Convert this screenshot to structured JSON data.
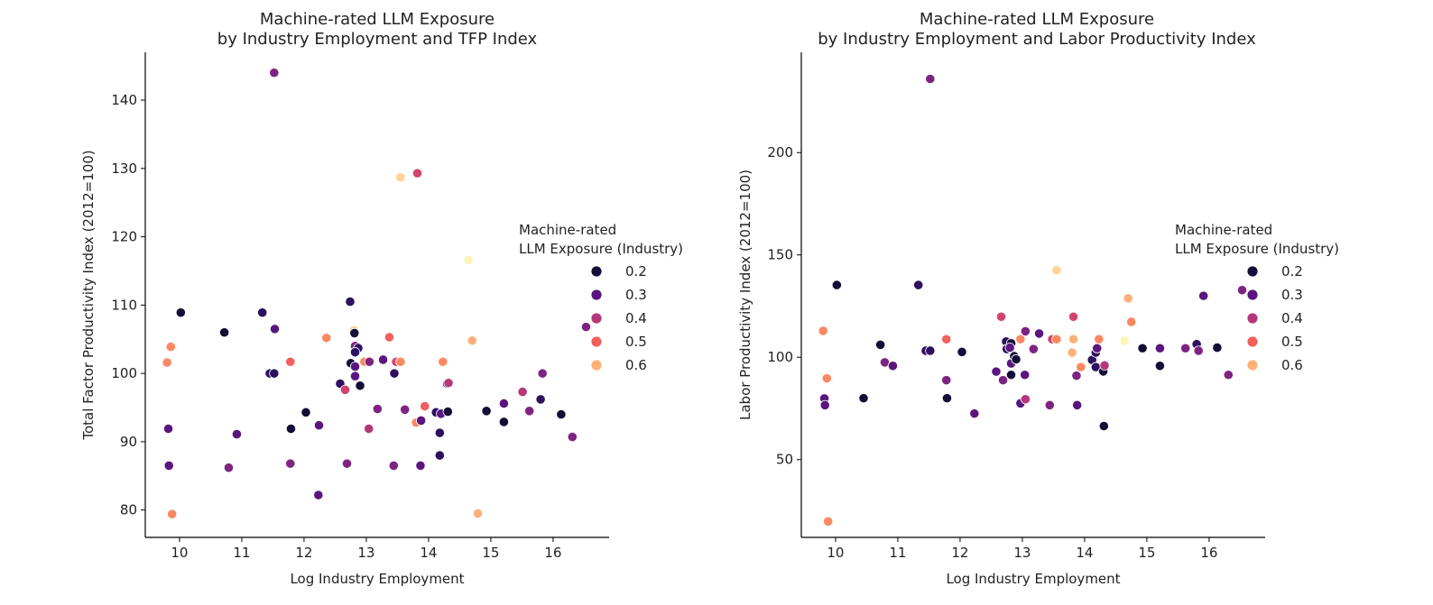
{
  "palette": {
    "0.2": "#140e36",
    "0.25": "#2d1160",
    "0.3": "#5a167e",
    "0.35": "#7d2482",
    "0.4": "#b5367a",
    "0.45": "#d3436e",
    "0.5": "#f1605d",
    "0.55": "#fb8861",
    "0.6": "#feb078",
    "0.65": "#fed395",
    "0.7": "#fcf5b8"
  },
  "chart_data": [
    {
      "type": "scatter",
      "title_line1": "Machine-rated LLM Exposure",
      "title_line2": "by Industry Employment and TFP Index",
      "xlabel": "Log Industry Employment",
      "ylabel": "Total Factor Productivity Index (2012=100)",
      "xlim": [
        9.45,
        16.9
      ],
      "ylim": [
        76,
        147
      ],
      "xticks": [
        10,
        11,
        12,
        13,
        14,
        15,
        16
      ],
      "yticks": [
        80,
        90,
        100,
        110,
        120,
        130,
        140
      ],
      "grid": false,
      "legend": {
        "title_line1": "Machine-rated",
        "title_line2": "LLM Exposure (Industry)",
        "position": "right",
        "entries": [
          {
            "label": "0.2",
            "value": 0.2
          },
          {
            "label": "0.3",
            "value": 0.3
          },
          {
            "label": "0.4",
            "value": 0.4
          },
          {
            "label": "0.5",
            "value": 0.5
          },
          {
            "label": "0.6",
            "value": 0.6
          }
        ]
      },
      "points": [
        {
          "x": 11.52,
          "y": 144.0,
          "c": 0.35
        },
        {
          "x": 13.55,
          "y": 128.7,
          "c": 0.65
        },
        {
          "x": 13.82,
          "y": 129.3,
          "c": 0.45
        },
        {
          "x": 14.64,
          "y": 116.6,
          "c": 0.7
        },
        {
          "x": 10.02,
          "y": 108.9,
          "c": 0.2
        },
        {
          "x": 10.72,
          "y": 106.0,
          "c": 0.2
        },
        {
          "x": 11.33,
          "y": 108.9,
          "c": 0.25
        },
        {
          "x": 11.53,
          "y": 106.5,
          "c": 0.3
        },
        {
          "x": 12.74,
          "y": 110.5,
          "c": 0.25
        },
        {
          "x": 12.36,
          "y": 105.2,
          "c": 0.55
        },
        {
          "x": 12.8,
          "y": 106.3,
          "c": 0.65
        },
        {
          "x": 12.81,
          "y": 105.9,
          "c": 0.2
        },
        {
          "x": 9.86,
          "y": 103.9,
          "c": 0.55
        },
        {
          "x": 9.8,
          "y": 101.6,
          "c": 0.55
        },
        {
          "x": 11.45,
          "y": 100.0,
          "c": 0.25
        },
        {
          "x": 11.52,
          "y": 100.0,
          "c": 0.25
        },
        {
          "x": 11.78,
          "y": 101.7,
          "c": 0.5
        },
        {
          "x": 12.58,
          "y": 98.5,
          "c": 0.25
        },
        {
          "x": 12.66,
          "y": 97.6,
          "c": 0.45
        },
        {
          "x": 12.82,
          "y": 104.0,
          "c": 0.35
        },
        {
          "x": 12.87,
          "y": 103.7,
          "c": 0.25
        },
        {
          "x": 12.82,
          "y": 103.1,
          "c": 0.25
        },
        {
          "x": 12.75,
          "y": 101.5,
          "c": 0.2
        },
        {
          "x": 12.82,
          "y": 101.0,
          "c": 0.3
        },
        {
          "x": 12.82,
          "y": 99.6,
          "c": 0.3
        },
        {
          "x": 12.9,
          "y": 98.2,
          "c": 0.2
        },
        {
          "x": 12.97,
          "y": 101.7,
          "c": 0.55
        },
        {
          "x": 13.05,
          "y": 101.7,
          "c": 0.35
        },
        {
          "x": 13.27,
          "y": 102.0,
          "c": 0.3
        },
        {
          "x": 13.37,
          "y": 105.3,
          "c": 0.5
        },
        {
          "x": 13.45,
          "y": 100.0,
          "c": 0.25
        },
        {
          "x": 13.48,
          "y": 101.7,
          "c": 0.45
        },
        {
          "x": 13.55,
          "y": 101.7,
          "c": 0.55
        },
        {
          "x": 14.23,
          "y": 101.7,
          "c": 0.55
        },
        {
          "x": 14.3,
          "y": 98.5,
          "c": 0.2
        },
        {
          "x": 14.32,
          "y": 98.6,
          "c": 0.4
        },
        {
          "x": 14.7,
          "y": 104.8,
          "c": 0.6
        },
        {
          "x": 15.51,
          "y": 97.3,
          "c": 0.4
        },
        {
          "x": 15.83,
          "y": 100.0,
          "c": 0.35
        },
        {
          "x": 16.53,
          "y": 106.8,
          "c": 0.35
        },
        {
          "x": 15.8,
          "y": 96.2,
          "c": 0.25
        },
        {
          "x": 15.62,
          "y": 94.5,
          "c": 0.35
        },
        {
          "x": 15.21,
          "y": 95.6,
          "c": 0.3
        },
        {
          "x": 14.93,
          "y": 94.5,
          "c": 0.2
        },
        {
          "x": 15.21,
          "y": 92.9,
          "c": 0.2
        },
        {
          "x": 16.13,
          "y": 94.0,
          "c": 0.2
        },
        {
          "x": 16.31,
          "y": 90.7,
          "c": 0.35
        },
        {
          "x": 12.03,
          "y": 94.3,
          "c": 0.2
        },
        {
          "x": 11.79,
          "y": 91.9,
          "c": 0.2
        },
        {
          "x": 12.24,
          "y": 92.4,
          "c": 0.3
        },
        {
          "x": 13.18,
          "y": 94.8,
          "c": 0.35
        },
        {
          "x": 13.04,
          "y": 91.9,
          "c": 0.4
        },
        {
          "x": 13.62,
          "y": 94.7,
          "c": 0.35
        },
        {
          "x": 13.8,
          "y": 92.8,
          "c": 0.55
        },
        {
          "x": 13.88,
          "y": 93.1,
          "c": 0.3
        },
        {
          "x": 13.94,
          "y": 95.2,
          "c": 0.5
        },
        {
          "x": 14.12,
          "y": 94.3,
          "c": 0.25
        },
        {
          "x": 14.2,
          "y": 94.1,
          "c": 0.3
        },
        {
          "x": 14.31,
          "y": 94.4,
          "c": 0.2
        },
        {
          "x": 14.18,
          "y": 91.3,
          "c": 0.25
        },
        {
          "x": 14.18,
          "y": 88.0,
          "c": 0.25
        },
        {
          "x": 9.82,
          "y": 91.9,
          "c": 0.3
        },
        {
          "x": 10.92,
          "y": 91.1,
          "c": 0.3
        },
        {
          "x": 9.83,
          "y": 86.5,
          "c": 0.3
        },
        {
          "x": 10.79,
          "y": 86.2,
          "c": 0.35
        },
        {
          "x": 11.78,
          "y": 86.8,
          "c": 0.35
        },
        {
          "x": 12.69,
          "y": 86.8,
          "c": 0.35
        },
        {
          "x": 13.44,
          "y": 86.5,
          "c": 0.35
        },
        {
          "x": 13.87,
          "y": 86.5,
          "c": 0.3
        },
        {
          "x": 12.23,
          "y": 82.2,
          "c": 0.3
        },
        {
          "x": 9.88,
          "y": 79.4,
          "c": 0.55
        },
        {
          "x": 14.79,
          "y": 79.5,
          "c": 0.6
        }
      ]
    },
    {
      "type": "scatter",
      "title_line1": "Machine-rated LLM Exposure",
      "title_line2": "by Industry Employment and Labor Productivity Index",
      "xlabel": "Log Industry Employment",
      "ylabel": "Labor Productivity Index (2012=100)",
      "xlim": [
        9.45,
        16.9
      ],
      "ylim": [
        12,
        249
      ],
      "xticks": [
        10,
        11,
        12,
        13,
        14,
        15,
        16
      ],
      "yticks": [
        50,
        100,
        150,
        200
      ],
      "grid": false,
      "legend": {
        "title_line1": "Machine-rated",
        "title_line2": "LLM Exposure (Industry)",
        "position": "right",
        "entries": [
          {
            "label": "0.2",
            "value": 0.2
          },
          {
            "label": "0.3",
            "value": 0.3
          },
          {
            "label": "0.4",
            "value": 0.4
          },
          {
            "label": "0.5",
            "value": 0.5
          },
          {
            "label": "0.6",
            "value": 0.6
          }
        ]
      },
      "points": [
        {
          "x": 11.52,
          "y": 236.0,
          "c": 0.35
        },
        {
          "x": 13.55,
          "y": 142.5,
          "c": 0.65
        },
        {
          "x": 14.64,
          "y": 108.0,
          "c": 0.7
        },
        {
          "x": 14.7,
          "y": 128.8,
          "c": 0.6
        },
        {
          "x": 14.75,
          "y": 117.3,
          "c": 0.55
        },
        {
          "x": 10.02,
          "y": 135.3,
          "c": 0.2
        },
        {
          "x": 11.33,
          "y": 135.3,
          "c": 0.25
        },
        {
          "x": 9.8,
          "y": 112.9,
          "c": 0.55
        },
        {
          "x": 9.86,
          "y": 89.7,
          "c": 0.55
        },
        {
          "x": 9.82,
          "y": 79.9,
          "c": 0.3
        },
        {
          "x": 9.83,
          "y": 76.6,
          "c": 0.3
        },
        {
          "x": 9.88,
          "y": 19.8,
          "c": 0.55
        },
        {
          "x": 10.72,
          "y": 106.1,
          "c": 0.2
        },
        {
          "x": 10.79,
          "y": 97.5,
          "c": 0.35
        },
        {
          "x": 10.92,
          "y": 95.8,
          "c": 0.3
        },
        {
          "x": 10.45,
          "y": 80.0,
          "c": 0.2
        },
        {
          "x": 11.45,
          "y": 103.2,
          "c": 0.25
        },
        {
          "x": 11.52,
          "y": 103.2,
          "c": 0.25
        },
        {
          "x": 11.78,
          "y": 108.8,
          "c": 0.5
        },
        {
          "x": 11.78,
          "y": 88.8,
          "c": 0.35
        },
        {
          "x": 11.79,
          "y": 80.0,
          "c": 0.2
        },
        {
          "x": 12.03,
          "y": 102.6,
          "c": 0.2
        },
        {
          "x": 12.23,
          "y": 72.5,
          "c": 0.3
        },
        {
          "x": 12.58,
          "y": 93.0,
          "c": 0.3
        },
        {
          "x": 12.66,
          "y": 119.8,
          "c": 0.45
        },
        {
          "x": 12.69,
          "y": 88.8,
          "c": 0.35
        },
        {
          "x": 12.74,
          "y": 107.7,
          "c": 0.25
        },
        {
          "x": 12.75,
          "y": 104.0,
          "c": 0.25
        },
        {
          "x": 12.82,
          "y": 106.8,
          "c": 0.2
        },
        {
          "x": 12.8,
          "y": 104.7,
          "c": 0.3
        },
        {
          "x": 12.82,
          "y": 97.0,
          "c": 0.3
        },
        {
          "x": 12.82,
          "y": 91.4,
          "c": 0.2
        },
        {
          "x": 12.87,
          "y": 100.5,
          "c": 0.2
        },
        {
          "x": 12.9,
          "y": 99.0,
          "c": 0.2
        },
        {
          "x": 12.97,
          "y": 108.8,
          "c": 0.55
        },
        {
          "x": 12.97,
          "y": 77.5,
          "c": 0.3
        },
        {
          "x": 13.04,
          "y": 91.4,
          "c": 0.3
        },
        {
          "x": 13.05,
          "y": 112.7,
          "c": 0.35
        },
        {
          "x": 13.05,
          "y": 79.5,
          "c": 0.4
        },
        {
          "x": 13.18,
          "y": 104.0,
          "c": 0.35
        },
        {
          "x": 13.27,
          "y": 111.6,
          "c": 0.3
        },
        {
          "x": 13.44,
          "y": 76.6,
          "c": 0.35
        },
        {
          "x": 13.48,
          "y": 108.8,
          "c": 0.45
        },
        {
          "x": 13.55,
          "y": 108.8,
          "c": 0.55
        },
        {
          "x": 13.8,
          "y": 102.3,
          "c": 0.6
        },
        {
          "x": 13.82,
          "y": 108.8,
          "c": 0.6
        },
        {
          "x": 13.82,
          "y": 119.8,
          "c": 0.45
        },
        {
          "x": 13.87,
          "y": 91.0,
          "c": 0.35
        },
        {
          "x": 13.88,
          "y": 76.6,
          "c": 0.3
        },
        {
          "x": 13.94,
          "y": 95.2,
          "c": 0.55
        },
        {
          "x": 14.12,
          "y": 98.7,
          "c": 0.25
        },
        {
          "x": 14.18,
          "y": 102.3,
          "c": 0.25
        },
        {
          "x": 14.2,
          "y": 104.4,
          "c": 0.3
        },
        {
          "x": 14.18,
          "y": 95.2,
          "c": 0.25
        },
        {
          "x": 14.23,
          "y": 108.8,
          "c": 0.55
        },
        {
          "x": 14.3,
          "y": 93.1,
          "c": 0.2
        },
        {
          "x": 14.32,
          "y": 96.0,
          "c": 0.4
        },
        {
          "x": 14.31,
          "y": 66.4,
          "c": 0.2
        },
        {
          "x": 14.93,
          "y": 104.4,
          "c": 0.2
        },
        {
          "x": 15.21,
          "y": 104.4,
          "c": 0.3
        },
        {
          "x": 15.21,
          "y": 95.8,
          "c": 0.2
        },
        {
          "x": 15.62,
          "y": 104.4,
          "c": 0.35
        },
        {
          "x": 15.8,
          "y": 106.4,
          "c": 0.25
        },
        {
          "x": 15.83,
          "y": 103.2,
          "c": 0.35
        },
        {
          "x": 15.91,
          "y": 130.0,
          "c": 0.3
        },
        {
          "x": 16.13,
          "y": 104.7,
          "c": 0.2
        },
        {
          "x": 16.31,
          "y": 91.4,
          "c": 0.35
        },
        {
          "x": 16.53,
          "y": 132.8,
          "c": 0.35
        }
      ]
    }
  ]
}
